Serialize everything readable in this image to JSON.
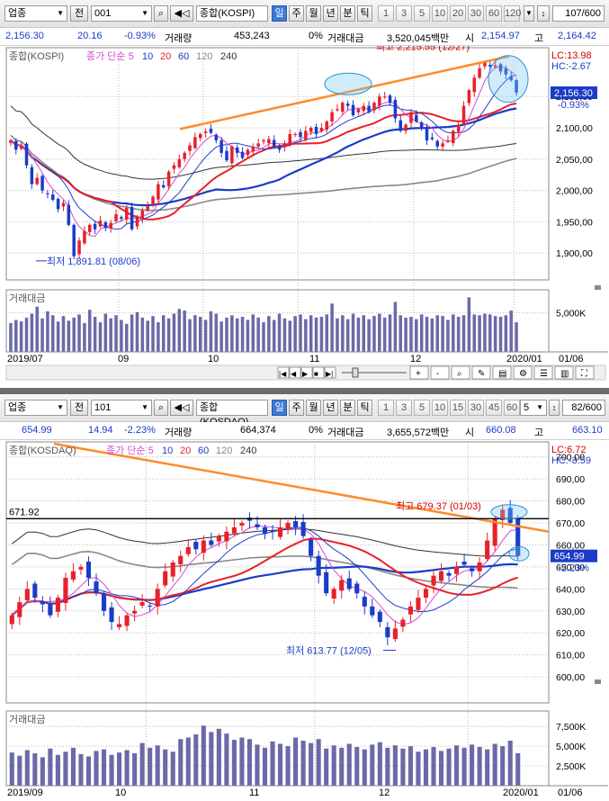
{
  "colors": {
    "up": "#e8202a",
    "down": "#1a3cc8",
    "ma5": "#d04cd0",
    "ma10": "#1a3cc8",
    "ma20": "#e8202a",
    "ma60": "#1a3cc8",
    "ma120": "#888888",
    "ma240": "#333333",
    "trend": "#ff8a2a",
    "accent": "#3d7ad6",
    "grid": "#bdbdbd"
  },
  "panels": [
    {
      "toolbar": {
        "category": "업종",
        "prev_label": "전",
        "code": "001",
        "name": "종합(KOSPI)",
        "periods": [
          "일",
          "주",
          "월",
          "년",
          "분",
          "틱"
        ],
        "active_period": "일",
        "numbers": [
          "1",
          "3",
          "5",
          "10",
          "20",
          "30",
          "60",
          "120"
        ],
        "count": "107",
        "total": "/600"
      },
      "quote": {
        "price": "2,156.30",
        "change": "20.16",
        "change_pct": "-0.93%",
        "volume_label": "거래량",
        "volume": "453,243",
        "volume_pct": "0%",
        "value_label": "거래대금",
        "value": "3,520,045백만",
        "open_label": "시",
        "open": "2,154.97",
        "high_label": "고",
        "high": "2,164.42"
      },
      "chart_data": {
        "type": "candlestick",
        "title": "종합(KOSPI)",
        "legend": {
          "prefix": "종가 단순",
          "periods": [
            "5",
            "10",
            "20",
            "60",
            "120",
            "240"
          ]
        },
        "ylim": [
          1860,
          2225
        ],
        "y_ticks": [
          "2,150,00",
          "2,100,00",
          "2,050,00",
          "2,000,00",
          "1,950,00",
          "1,900,00"
        ],
        "y_tick_values": [
          2150,
          2100,
          2050,
          2000,
          1950,
          1900
        ],
        "x_labels": [
          "2019/07",
          "09",
          "10",
          "11",
          "12",
          "2020/01",
          "01/06"
        ],
        "lc": "LC:13.98",
        "hc": "HC:-2.67",
        "last_price": "2,156.30",
        "last_pct": "-0.93%",
        "high_annotation": "최고 2,215.55 (12/27)",
        "low_annotation": "최저 1,891.81 (08/06)",
        "high_value": 2215.55,
        "low_value": 1891.81,
        "closes": [
          2080,
          2065,
          2070,
          2040,
          2010,
          2020,
          2000,
          1995,
          1985,
          1970,
          1980,
          1945,
          1895,
          1920,
          1935,
          1945,
          1938,
          1952,
          1940,
          1948,
          1962,
          1955,
          1972,
          1938,
          1958,
          1968,
          1975,
          1990,
          2010,
          2005,
          2030,
          2040,
          2050,
          2060,
          2072,
          2085,
          2090,
          2094,
          2092,
          2080,
          2060,
          2048,
          2070,
          2060,
          2052,
          2065,
          2070,
          2075,
          2080,
          2082,
          2070,
          2065,
          2075,
          2090,
          2090,
          2085,
          2095,
          2100,
          2090,
          2100,
          2110,
          2125,
          2130,
          2140,
          2135,
          2120,
          2130,
          2135,
          2125,
          2140,
          2150,
          2150,
          2140,
          2115,
          2095,
          2105,
          2125,
          2110,
          2100,
          2080,
          2082,
          2070,
          2075,
          2080,
          2095,
          2105,
          2135,
          2160,
          2180,
          2195,
          2205,
          2198,
          2200,
          2190,
          2185,
          2176,
          2156
        ],
        "volume_title": "거래대금",
        "volume_ticks": [
          "5,000K"
        ],
        "volume_tick_values": [
          5000
        ],
        "volume_max": 7500,
        "volumes": [
          3700,
          4100,
          3900,
          4400,
          4900,
          5800,
          4300,
          5200,
          4700,
          3900,
          4600,
          4000,
          4400,
          4800,
          3700,
          5400,
          4500,
          3800,
          4900,
          4300,
          4700,
          4100,
          3600,
          4800,
          5100,
          4400,
          4000,
          4600,
          3800,
          4700,
          4300,
          4900,
          5500,
          5300,
          4200,
          4700,
          4500,
          4100,
          5200,
          4900,
          3900,
          4400,
          4700,
          4300,
          4500,
          4100,
          4800,
          4400,
          3800,
          4600,
          4100,
          4900,
          4300,
          4000,
          4600,
          4800,
          4200,
          4700,
          4400,
          4500,
          4800,
          6200,
          4300,
          4700,
          4200,
          4900,
          4400,
          4700,
          4200,
          4600,
          4900,
          4400,
          4800,
          6400,
          4700,
          4400,
          4500,
          4200,
          4800,
          4500,
          4300,
          4700,
          4600,
          4100,
          4800,
          4500,
          4700,
          7000,
          4800,
          4700,
          4900,
          4800,
          4600,
          4500,
          4700,
          5300,
          3800
        ]
      },
      "scroll": {
        "arrows": [
          "|◀",
          "◀",
          "▶",
          "■",
          "▶|"
        ]
      }
    },
    {
      "toolbar": {
        "category": "업종",
        "prev_label": "전",
        "code": "101",
        "name": "종합(KOSDAQ)",
        "periods": [
          "일",
          "주",
          "월",
          "년",
          "분",
          "틱"
        ],
        "active_period": "일",
        "numbers": [
          "1",
          "3",
          "5",
          "10",
          "15",
          "30",
          "45",
          "60"
        ],
        "extra_select": "5",
        "count": "82",
        "total": "/600"
      },
      "quote": {
        "price": "654.99",
        "change": "14.94",
        "change_pct": "-2.23%",
        "volume_label": "거래량",
        "volume": "664,374",
        "volume_pct": "0%",
        "value_label": "거래대금",
        "value": "3,655,572백만",
        "open_label": "시",
        "open": "660.08",
        "high_label": "고",
        "high": "663.10"
      },
      "chart_data": {
        "type": "candlestick",
        "title": "종합(KOSDAQ)",
        "legend": {
          "prefix": "종가 단순",
          "periods": [
            "5",
            "10",
            "20",
            "60",
            "120",
            "240"
          ]
        },
        "ylim": [
          589,
          706
        ],
        "y_ticks": [
          "700,00",
          "690,00",
          "680,00",
          "670,00",
          "660,00",
          "650,00",
          "640,00",
          "630,00",
          "620,00",
          "610,00",
          "600,00"
        ],
        "y_tick_values": [
          700,
          690,
          680,
          670,
          660,
          650,
          640,
          630,
          620,
          610,
          600
        ],
        "x_labels": [
          "2019/09",
          "10",
          "11",
          "12",
          "2020/01",
          "01/06"
        ],
        "lc": "LC:6.72",
        "hc": "HC:-3.59",
        "last_price": "654.99",
        "last_pct": "-2.23%",
        "resistance_label": "671.92",
        "resistance": 671.92,
        "high_annotation": "최고 679.37 (01/03)",
        "low_annotation": "최저 613.77 (12/05)",
        "high_value": 679.37,
        "low_value": 613.77,
        "closes": [
          628,
          634,
          640,
          636,
          633,
          628,
          636,
          645,
          648,
          650,
          645,
          638,
          630,
          625,
          624,
          628,
          630,
          634,
          632,
          640,
          648,
          652,
          655,
          659,
          658,
          662,
          660,
          664,
          666,
          668,
          670,
          671,
          668,
          665,
          666,
          668,
          670,
          668,
          664,
          655,
          646,
          638,
          640,
          644,
          640,
          638,
          632,
          628,
          625,
          618,
          622,
          626,
          632,
          636,
          640,
          646,
          648,
          646,
          650,
          651,
          648,
          652,
          662,
          672,
          676,
          670,
          655
        ],
        "volume_title": "거래대금",
        "volume_ticks": [
          "7,500K",
          "5,000K",
          "2,500K"
        ],
        "volume_tick_values": [
          7500,
          5000,
          2500
        ],
        "volume_max": 9000,
        "volumes": [
          4200,
          3800,
          4500,
          4100,
          3600,
          4700,
          3900,
          4300,
          4800,
          4000,
          3700,
          4400,
          4600,
          3900,
          4200,
          4500,
          4100,
          5400,
          4800,
          5100,
          4600,
          4300,
          5900,
          6100,
          6500,
          7600,
          6800,
          7200,
          6600,
          5800,
          6100,
          5900,
          5200,
          4800,
          5600,
          5300,
          5000,
          6100,
          5700,
          5400,
          5900,
          4700,
          5100,
          4800,
          5300,
          4900,
          4600,
          5200,
          5500,
          4800,
          5100,
          4700,
          5000,
          4300,
          4600,
          4900,
          4400,
          4700,
          5100,
          4800,
          5200,
          4900,
          4600,
          5300,
          5000,
          5700,
          4100
        ]
      },
      "scroll": {
        "arrows": []
      }
    }
  ]
}
